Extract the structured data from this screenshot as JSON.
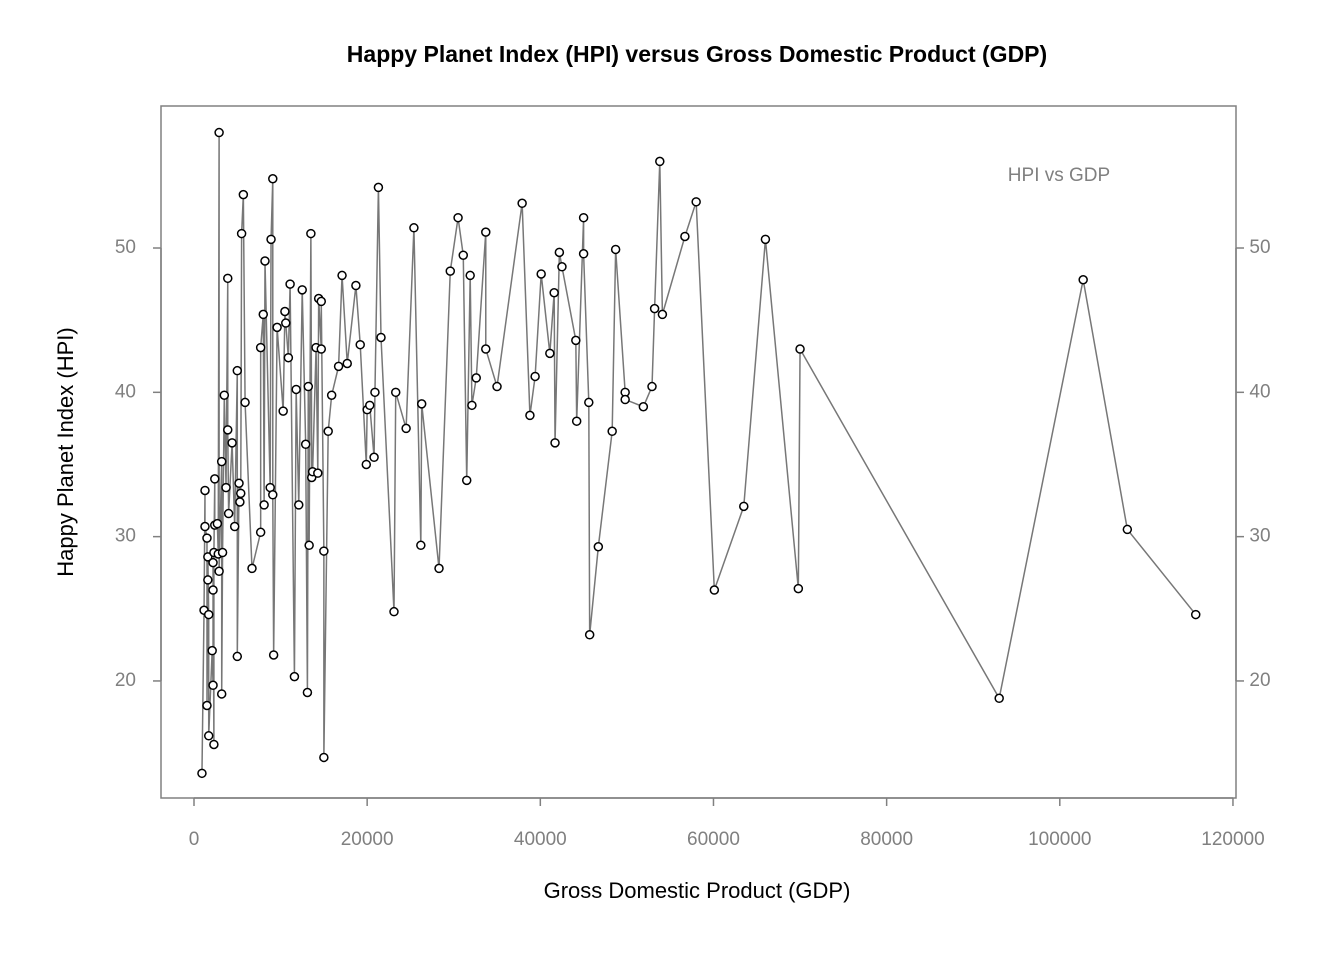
{
  "chart_data": {
    "type": "line",
    "title": "Happy Planet Index (HPI) versus Gross Domestic Product (GDP)",
    "x_label": "Gross Domestic Product (GDP)",
    "y_label": "Happy Planet Index (HPI)",
    "legend": "top-right",
    "x": [
      920,
      1160,
      1270,
      1270,
      1500,
      1500,
      1600,
      1600,
      1700,
      1700,
      2100,
      2200,
      2200,
      2200,
      2300,
      2300,
      2400,
      2400,
      2700,
      2800,
      2900,
      2900,
      3200,
      3200,
      3300,
      3500,
      3700,
      3900,
      3900,
      4000,
      4400,
      4700,
      5000,
      5000,
      5200,
      5300,
      5400,
      5500,
      5700,
      5900,
      6700,
      7700,
      7700,
      8000,
      8100,
      8200,
      8800,
      8900,
      9100,
      9100,
      9200,
      9600,
      10300,
      10500,
      10600,
      10900,
      11100,
      11600,
      11800,
      12100,
      12500,
      12900,
      13100,
      13200,
      13300,
      13500,
      13600,
      13700,
      14100,
      14300,
      14400,
      14700,
      14700,
      15000,
      15000,
      15500,
      15900,
      16700,
      17100,
      17700,
      18700,
      19200,
      19900,
      20000,
      20300,
      20800,
      20900,
      21300,
      21600,
      23100,
      23300,
      24500,
      25400,
      26200,
      26300,
      28300,
      29600,
      30500,
      31100,
      31500,
      31900,
      32100,
      32600,
      33700,
      33700,
      35000,
      37900,
      38800,
      39400,
      40100,
      41100,
      41600,
      41700,
      42200,
      42500,
      44100,
      44200,
      45000,
      45000,
      45600,
      45700,
      46700,
      48300,
      48700,
      49800,
      49800,
      51900,
      52900,
      53200,
      53800,
      54100,
      56700,
      58000,
      60100,
      63500,
      66000,
      69800,
      70000,
      93000,
      102700,
      107800,
      115700
    ],
    "series": [
      {
        "name": "HPI vs GDP",
        "color": "#777777",
        "values": [
          13.6,
          24.9,
          33.2,
          30.7,
          29.9,
          18.3,
          27.0,
          28.6,
          24.6,
          16.2,
          22.1,
          19.7,
          26.3,
          28.2,
          15.6,
          28.9,
          34.0,
          30.8,
          30.9,
          28.8,
          58.0,
          27.6,
          35.2,
          19.1,
          28.9,
          39.8,
          33.4,
          47.9,
          37.4,
          31.6,
          36.5,
          30.7,
          41.5,
          21.7,
          33.7,
          32.4,
          33.0,
          51.0,
          53.7,
          39.3,
          27.8,
          30.3,
          43.1,
          45.4,
          32.2,
          49.1,
          33.4,
          50.6,
          54.8,
          32.9,
          21.8,
          44.5,
          38.7,
          45.6,
          44.8,
          42.4,
          47.5,
          20.3,
          40.2,
          32.2,
          47.1,
          36.4,
          19.2,
          40.4,
          29.4,
          51.0,
          34.1,
          34.5,
          43.1,
          34.4,
          46.5,
          43.0,
          46.3,
          29.0,
          14.7,
          37.3,
          39.8,
          41.8,
          48.1,
          42.0,
          47.4,
          43.3,
          35.0,
          38.8,
          39.1,
          35.5,
          40.0,
          54.2,
          43.8,
          24.8,
          40.0,
          37.5,
          51.4,
          29.4,
          39.2,
          27.8,
          48.4,
          52.1,
          49.5,
          33.9,
          48.1,
          39.1,
          41.0,
          51.1,
          43.0,
          40.4,
          53.1,
          38.4,
          41.1,
          48.2,
          42.7,
          46.9,
          36.5,
          49.7,
          48.7,
          43.6,
          38.0,
          52.1,
          49.6,
          39.3,
          23.2,
          29.3,
          37.3,
          49.9,
          40.0,
          39.5,
          39.0,
          40.4,
          45.8,
          56.0,
          45.4,
          50.8,
          53.2,
          26.3,
          32.1,
          50.6,
          26.4,
          43.0,
          18.8,
          47.8,
          30.5,
          24.6
        ]
      }
    ],
    "xlim": [
      -3811,
      120351
    ],
    "xticks": [
      0,
      20000,
      40000,
      60000,
      80000,
      100000,
      120000
    ],
    "ylim": [
      11.89,
      59.84
    ],
    "yticks": [
      20,
      30,
      40,
      50
    ],
    "y2lim": [
      11.89,
      59.84
    ],
    "y2ticks": [
      20,
      30,
      40,
      50
    ]
  }
}
